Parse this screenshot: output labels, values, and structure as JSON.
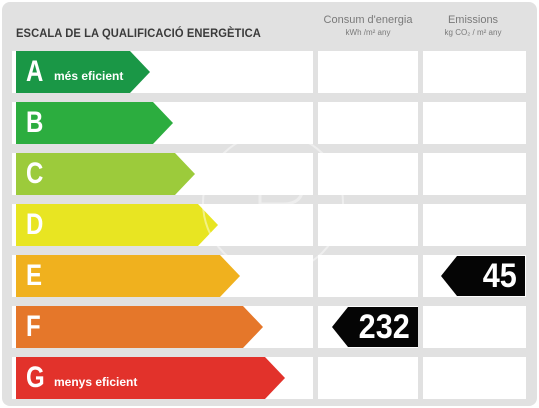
{
  "header": {
    "title": "ESCALA DE LA QUALIFICACIÓ ENERGÈTICA",
    "consumption": {
      "label": "Consum d'energia",
      "unit": "kWh /m² any"
    },
    "emissions": {
      "label": "Emissions",
      "unit": "kg CO₂ / m² any"
    }
  },
  "ratings": [
    {
      "letter": "A",
      "sublabel": "més eficient",
      "color": "#1a9746"
    },
    {
      "letter": "B",
      "sublabel": "",
      "color": "#2cad3f"
    },
    {
      "letter": "C",
      "sublabel": "",
      "color": "#9ccb3b"
    },
    {
      "letter": "D",
      "sublabel": "",
      "color": "#e8e522"
    },
    {
      "letter": "E",
      "sublabel": "",
      "color": "#f0b11e"
    },
    {
      "letter": "F",
      "sublabel": "",
      "color": "#e5772a"
    },
    {
      "letter": "G",
      "sublabel": "menys eficient",
      "color": "#e2322b"
    }
  ],
  "values": {
    "consumption": {
      "value": "232",
      "rating": "F"
    },
    "emissions": {
      "value": "45",
      "rating": "E"
    }
  }
}
